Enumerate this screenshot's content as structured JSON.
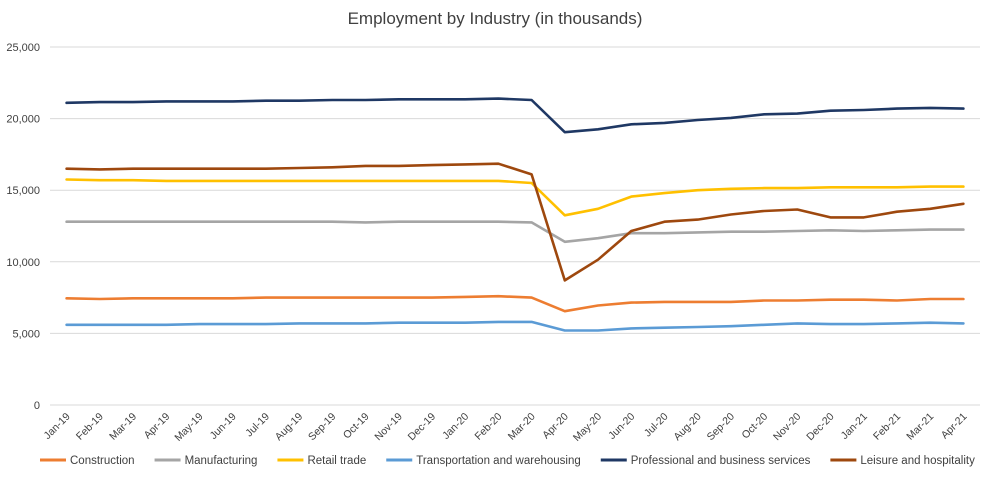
{
  "chart_data": {
    "type": "line",
    "title": "Employment by Industry (in thousands)",
    "xlabel": "",
    "ylabel": "",
    "ylim": [
      0,
      25000
    ],
    "yticks": [
      0,
      5000,
      10000,
      15000,
      20000,
      25000
    ],
    "ytick_labels": [
      "0",
      "5,000",
      "10,000",
      "15,000",
      "20,000",
      "25,000"
    ],
    "grid": true,
    "legend_position": "bottom",
    "categories": [
      "Jan-19",
      "Feb-19",
      "Mar-19",
      "Apr-19",
      "May-19",
      "Jun-19",
      "Jul-19",
      "Aug-19",
      "Sep-19",
      "Oct-19",
      "Nov-19",
      "Dec-19",
      "Jan-20",
      "Feb-20",
      "Mar-20",
      "Apr-20",
      "May-20",
      "Jun-20",
      "Jul-20",
      "Aug-20",
      "Sep-20",
      "Oct-20",
      "Nov-20",
      "Dec-20",
      "Jan-21",
      "Feb-21",
      "Mar-21",
      "Apr-21"
    ],
    "series": [
      {
        "name": "Construction",
        "color": "#ED7D31",
        "values": [
          7450,
          7400,
          7450,
          7450,
          7450,
          7450,
          7500,
          7500,
          7500,
          7500,
          7500,
          7500,
          7550,
          7600,
          7500,
          6550,
          6950,
          7150,
          7200,
          7200,
          7200,
          7300,
          7300,
          7350,
          7350,
          7300,
          7400,
          7400
        ]
      },
      {
        "name": "Manufacturing",
        "color": "#A5A5A5",
        "values": [
          12800,
          12800,
          12800,
          12800,
          12800,
          12800,
          12800,
          12800,
          12800,
          12750,
          12800,
          12800,
          12800,
          12800,
          12750,
          11400,
          11650,
          12000,
          12000,
          12050,
          12100,
          12100,
          12150,
          12200,
          12150,
          12200,
          12250,
          12250
        ]
      },
      {
        "name": "Retail trade",
        "color": "#FFC000",
        "values": [
          15750,
          15700,
          15700,
          15650,
          15650,
          15650,
          15650,
          15650,
          15650,
          15650,
          15650,
          15650,
          15650,
          15650,
          15500,
          13250,
          13700,
          14550,
          14800,
          15000,
          15100,
          15150,
          15150,
          15200,
          15200,
          15200,
          15250,
          15250
        ]
      },
      {
        "name": "Transportation and warehousing",
        "color": "#5B9BD5",
        "values": [
          5600,
          5600,
          5600,
          5600,
          5650,
          5650,
          5650,
          5700,
          5700,
          5700,
          5750,
          5750,
          5750,
          5800,
          5800,
          5200,
          5200,
          5350,
          5400,
          5450,
          5500,
          5600,
          5700,
          5650,
          5650,
          5700,
          5750,
          5700
        ]
      },
      {
        "name": "Professional and business services",
        "color": "#1F3864",
        "values": [
          21100,
          21150,
          21150,
          21200,
          21200,
          21200,
          21250,
          21250,
          21300,
          21300,
          21350,
          21350,
          21350,
          21400,
          21300,
          19050,
          19250,
          19600,
          19700,
          19900,
          20050,
          20300,
          20350,
          20550,
          20600,
          20700,
          20750,
          20700
        ]
      },
      {
        "name": "Leisure and hospitality",
        "color": "#9E480E",
        "values": [
          16500,
          16450,
          16500,
          16500,
          16500,
          16500,
          16500,
          16550,
          16600,
          16700,
          16700,
          16750,
          16800,
          16850,
          16100,
          8700,
          10150,
          12150,
          12800,
          12950,
          13300,
          13550,
          13650,
          13100,
          13100,
          13500,
          13700,
          14050
        ]
      }
    ]
  }
}
